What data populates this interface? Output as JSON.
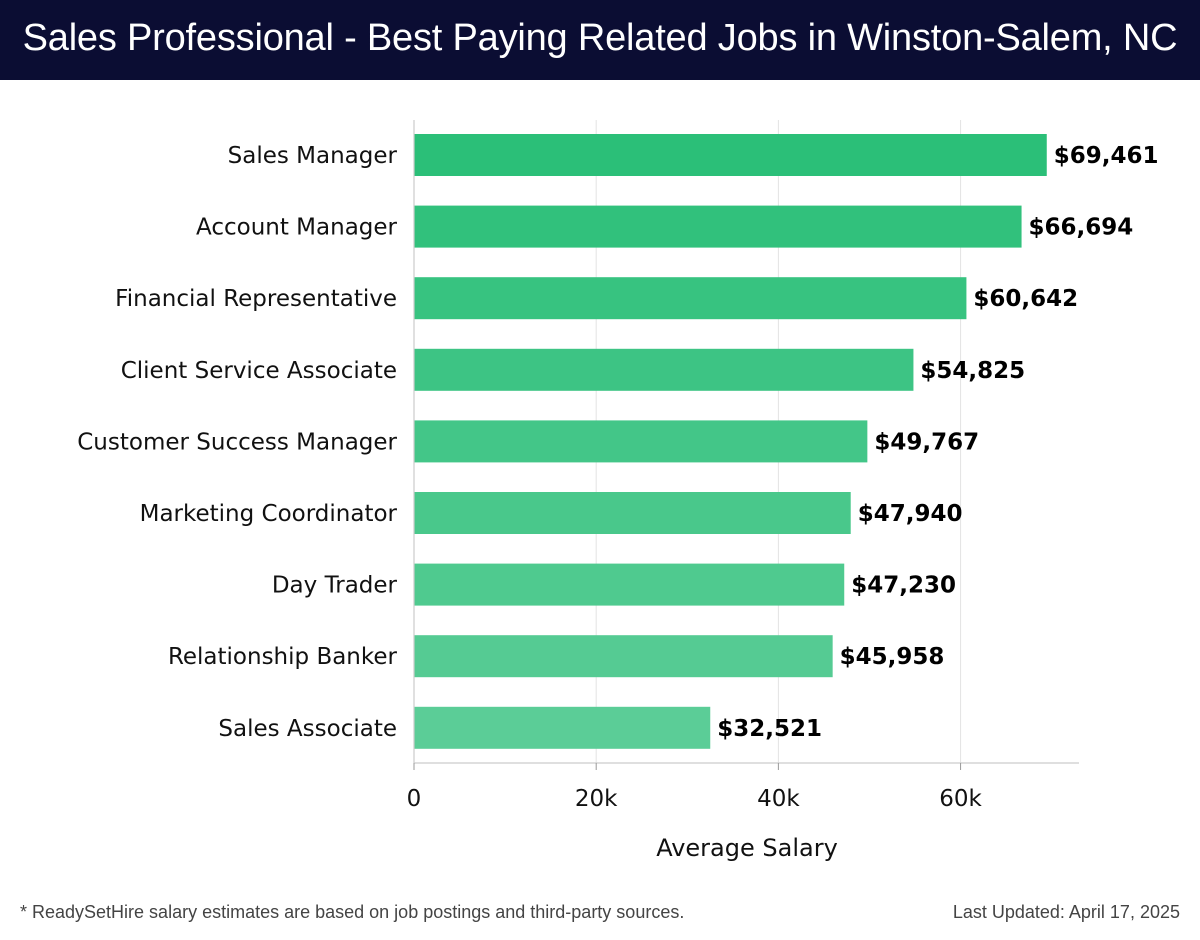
{
  "header": {
    "title": "Sales Professional - Best Paying Related Jobs in Winston-Salem, NC"
  },
  "footer": {
    "note": "* ReadySetHire salary estimates are based on job postings and third-party sources.",
    "updated": "Last Updated: April 17, 2025"
  },
  "colors": {
    "header_bg": "#0b0d33",
    "bar_top": "#2bbf78",
    "bar_bottom": "#5bcd97",
    "label_text": "#111111"
  },
  "chart_data": {
    "type": "bar",
    "orientation": "horizontal",
    "title": "",
    "xlabel": "Average Salary",
    "ylabel": "",
    "xlim": [
      0,
      73000
    ],
    "xticks": [
      0,
      20000,
      40000,
      60000
    ],
    "xtick_labels": [
      "0",
      "20k",
      "40k",
      "60k"
    ],
    "grid": "vertical",
    "categories": [
      "Sales Manager",
      "Account Manager",
      "Financial Representative",
      "Client Service Associate",
      "Customer Success Manager",
      "Marketing Coordinator",
      "Day Trader",
      "Relationship Banker",
      "Sales Associate"
    ],
    "values": [
      69461,
      66694,
      60642,
      54825,
      49767,
      47940,
      47230,
      45958,
      32521
    ],
    "value_labels": [
      "$69,461",
      "$66,694",
      "$60,642",
      "$54,825",
      "$49,767",
      "$47,940",
      "$47,230",
      "$45,958",
      "$32,521"
    ]
  }
}
